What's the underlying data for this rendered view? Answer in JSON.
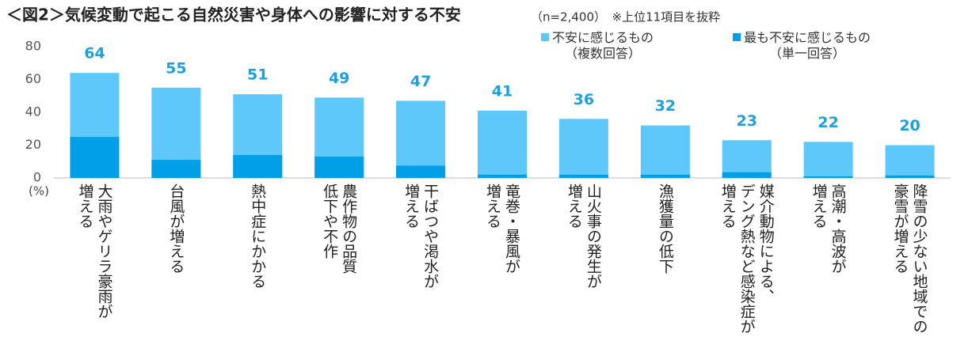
{
  "chart_data": {
    "type": "bar",
    "title": "＜図2＞気候変動で起こる自然災害や身体への影響に対する不安",
    "subtitle": "（n=2,400）　※上位11項目を抜粋",
    "y_unit": "(%)",
    "categories": [
      "大雨やゲリラ豪雨が\n増える",
      "台風が増える",
      "熱中症にかかる",
      "農作物の品質\n低下や不作",
      "干ばつや渇水が\n増える",
      "竜巻・暴風が\n増える",
      "山火事の発生が\n増える",
      "漁獲量の低下",
      "媒介動物による、\nデング熱など感染症が\n増える",
      "高潮・高波が\n増える",
      "降雪の少ない地域での\n豪雪が増える"
    ],
    "series": [
      {
        "name": "不安に感じるもの\n（複数回答）",
        "color": "#5ec8fa",
        "values": [
          64,
          55,
          51,
          49,
          47,
          41,
          36,
          32,
          23,
          22,
          20
        ],
        "show_labels": true
      },
      {
        "name": "最も不安に感じるもの\n（単一回答）",
        "color": "#009fe8",
        "values": [
          25,
          11,
          14,
          13,
          7.5,
          2,
          2,
          2,
          3.5,
          1,
          1.5
        ],
        "show_labels": false
      }
    ],
    "ylim": [
      0,
      80
    ],
    "yticks": [
      0,
      20,
      40,
      60,
      80
    ],
    "grid": false,
    "overlap": true,
    "legend_position": "top-right"
  }
}
